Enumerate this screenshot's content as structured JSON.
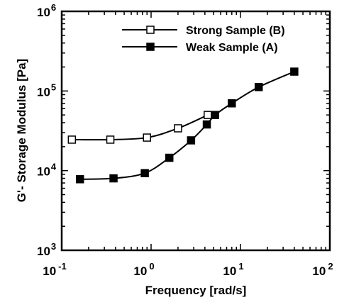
{
  "chart_data": {
    "type": "line",
    "xlabel": "Frequency [rad/s]",
    "ylabel": "G'- Storage Modulus [Pa]",
    "x_scale": "log",
    "y_scale": "log",
    "xlim": [
      0.1,
      100
    ],
    "ylim": [
      1000,
      1000000
    ],
    "x_ticks": [
      {
        "base": "10",
        "exp": "-1",
        "value": 0.1
      },
      {
        "base": "10",
        "exp": "0",
        "value": 1
      },
      {
        "base": "10",
        "exp": "1",
        "value": 10
      },
      {
        "base": "10",
        "exp": "2",
        "value": 100
      }
    ],
    "y_ticks": [
      {
        "base": "10",
        "exp": "3",
        "value": 1000
      },
      {
        "base": "10",
        "exp": "4",
        "value": 10000
      },
      {
        "base": "10",
        "exp": "5",
        "value": 100000
      },
      {
        "base": "10",
        "exp": "6",
        "value": 1000000
      }
    ],
    "legend_position": "top-right",
    "series": [
      {
        "name": "Strong Sample (B)",
        "marker": "open-square",
        "color": "#000000",
        "x": [
          0.13,
          0.35,
          0.9,
          2.0,
          4.3
        ],
        "y": [
          24500,
          24500,
          26000,
          34000,
          50000
        ]
      },
      {
        "name": "Weak Sample (A)",
        "marker": "filled-square",
        "color": "#000000",
        "x": [
          0.16,
          0.38,
          0.85,
          1.6,
          2.8,
          4.2,
          5.2,
          8.0,
          16.0,
          40.0
        ],
        "y": [
          7800,
          8000,
          9300,
          14500,
          24000,
          38000,
          50000,
          70000,
          112000,
          175000
        ]
      }
    ]
  }
}
